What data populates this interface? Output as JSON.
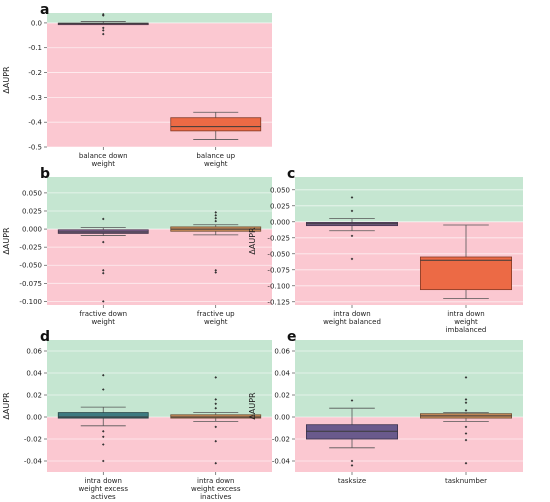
{
  "figure": {
    "background": "#ffffff",
    "positive_region_color": "#c5e6d1",
    "negative_region_color": "#fbc8d1",
    "grid": true
  },
  "chart_data": [
    {
      "panel": "a",
      "type": "box",
      "ylabel": "ΔAUPR",
      "ylim": [
        -0.5,
        0.04
      ],
      "yticks": [
        0.0,
        -0.1,
        -0.2,
        -0.3,
        -0.4,
        -0.5
      ],
      "categories": [
        [
          "balance down",
          "weight"
        ],
        [
          "balance up",
          "weight"
        ]
      ],
      "boxes": [
        {
          "color": "#8a5e7c",
          "q1": -0.003,
          "median": -0.002,
          "q3": -0.001,
          "whisker_low": -0.006,
          "whisker_high": 0.006,
          "outliers": [
            0.035,
            0.03,
            -0.02,
            -0.03,
            -0.045
          ]
        },
        {
          "color": "#ec6a45",
          "q1": -0.435,
          "median": -0.418,
          "q3": -0.382,
          "whisker_low": -0.47,
          "whisker_high": -0.36,
          "outliers": []
        }
      ]
    },
    {
      "panel": "b",
      "type": "box",
      "ylabel": "ΔAUPR",
      "ylim": [
        -0.105,
        0.072
      ],
      "yticks": [
        0.05,
        0.025,
        0.0,
        -0.025,
        -0.05,
        -0.075,
        -0.1
      ],
      "categories": [
        [
          "fractive down",
          "weight"
        ],
        [
          "fractive up",
          "weight"
        ]
      ],
      "boxes": [
        {
          "color": "#7b5c88",
          "q1": -0.006,
          "median": -0.004,
          "q3": -0.001,
          "whisker_low": -0.009,
          "whisker_high": 0.002,
          "outliers": [
            0.014,
            -0.018,
            -0.057,
            -0.061,
            -0.1
          ]
        },
        {
          "color": "#c98d5b",
          "q1": -0.003,
          "median": 0.0,
          "q3": 0.003,
          "whisker_low": -0.008,
          "whisker_high": 0.006,
          "outliers": [
            0.023,
            0.019,
            0.015,
            0.011,
            -0.057,
            -0.06
          ]
        }
      ]
    },
    {
      "panel": "c",
      "type": "box",
      "ylabel": "ΔAUPR",
      "ylim": [
        -0.13,
        0.07
      ],
      "yticks": [
        0.05,
        0.025,
        0.0,
        -0.025,
        -0.05,
        -0.075,
        -0.1,
        -0.125
      ],
      "categories": [
        [
          "intra down",
          "weight balanced"
        ],
        [
          "intra down",
          "weight",
          "imbalanced"
        ]
      ],
      "boxes": [
        {
          "color": "#7b5c88",
          "q1": -0.006,
          "median": -0.003,
          "q3": -0.001,
          "whisker_low": -0.014,
          "whisker_high": 0.005,
          "outliers": [
            0.038,
            0.017,
            -0.022,
            -0.058
          ]
        },
        {
          "color": "#ec6a45",
          "q1": -0.106,
          "median": -0.06,
          "q3": -0.055,
          "whisker_low": -0.12,
          "whisker_high": -0.005,
          "outliers": []
        }
      ]
    },
    {
      "panel": "d",
      "type": "box",
      "ylabel": "ΔAUPR",
      "ylim": [
        -0.05,
        0.07
      ],
      "yticks": [
        0.06,
        0.04,
        0.02,
        0.0,
        -0.02,
        -0.04
      ],
      "categories": [
        [
          "intra down",
          "weight excess",
          "actives"
        ],
        [
          "intra down",
          "weight excess",
          "inactives"
        ]
      ],
      "boxes": [
        {
          "color": "#3d7a80",
          "q1": -0.001,
          "median": 0.0,
          "q3": 0.004,
          "whisker_low": -0.008,
          "whisker_high": 0.009,
          "outliers": [
            0.038,
            0.025,
            -0.013,
            -0.018,
            -0.025,
            -0.04
          ]
        },
        {
          "color": "#c98d5b",
          "q1": -0.001,
          "median": 0.0,
          "q3": 0.002,
          "whisker_low": -0.004,
          "whisker_high": 0.004,
          "outliers": [
            0.036,
            0.016,
            0.012,
            0.008,
            -0.009,
            -0.022,
            -0.042
          ]
        }
      ]
    },
    {
      "panel": "e",
      "type": "box",
      "ylabel": "ΔAUPR",
      "ylim": [
        -0.05,
        0.07
      ],
      "yticks": [
        0.06,
        0.04,
        0.02,
        0.0,
        -0.02,
        -0.04
      ],
      "categories": [
        [
          "tasksize"
        ],
        [
          "tasknumber"
        ]
      ],
      "boxes": [
        {
          "color": "#6a5a8c",
          "q1": -0.02,
          "median": -0.013,
          "q3": -0.007,
          "whisker_low": -0.028,
          "whisker_high": 0.008,
          "outliers": [
            0.015,
            -0.04,
            -0.044
          ]
        },
        {
          "color": "#c98d5b",
          "q1": -0.001,
          "median": 0.001,
          "q3": 0.003,
          "whisker_low": -0.004,
          "whisker_high": 0.004,
          "outliers": [
            0.036,
            0.016,
            0.013,
            0.006,
            -0.009,
            -0.015,
            -0.021,
            -0.042
          ]
        }
      ]
    }
  ]
}
